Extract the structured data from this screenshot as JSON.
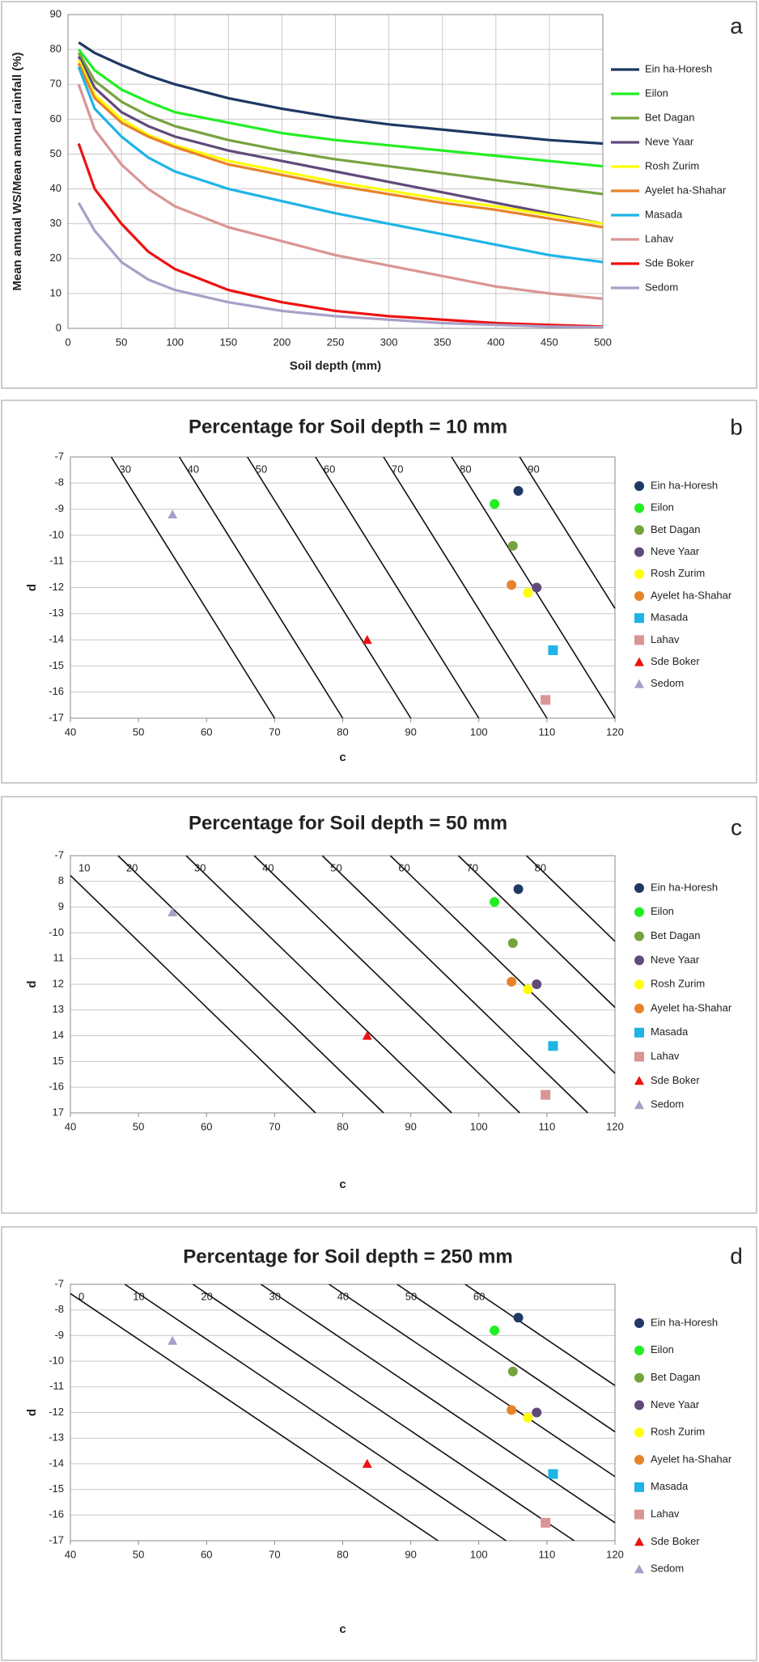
{
  "chart_data": [
    {
      "type": "line",
      "panel": "a",
      "xlabel": "Soil depth (mm)",
      "ylabel": "Mean annual WS/Mean annual rainfall (%)",
      "x": [
        10,
        25,
        50,
        75,
        100,
        150,
        200,
        250,
        300,
        350,
        400,
        450,
        500
      ],
      "xlim": [
        0,
        500
      ],
      "xticks": [
        0,
        50,
        100,
        150,
        200,
        250,
        300,
        350,
        400,
        450,
        500
      ],
      "ylim": [
        0,
        90
      ],
      "yticks": [
        0,
        10,
        20,
        30,
        40,
        50,
        60,
        70,
        80,
        90
      ],
      "grid": "both",
      "legend": "right",
      "series": [
        {
          "name": "Ein ha-Horesh",
          "color": "#1f3864",
          "values": [
            82,
            79,
            75.5,
            72.5,
            70,
            66,
            63,
            60.5,
            58.5,
            57,
            55.5,
            54,
            53
          ]
        },
        {
          "name": "Eilon",
          "color": "#22ee22",
          "values": [
            80,
            74,
            68.5,
            65,
            62,
            59,
            56,
            54,
            52.5,
            51,
            49.5,
            48,
            46.5
          ]
        },
        {
          "name": "Bet Dagan",
          "color": "#77a33f",
          "values": [
            79,
            71,
            65,
            61,
            58,
            54,
            51,
            48.5,
            46.5,
            44.5,
            42.5,
            40.5,
            38.5
          ]
        },
        {
          "name": "Neve Yaar",
          "color": "#604a7b",
          "values": [
            78,
            69,
            62,
            58,
            55,
            51,
            48,
            45,
            42,
            39,
            36,
            33,
            30
          ]
        },
        {
          "name": "Rosh Zurim",
          "color": "#ffff00",
          "values": [
            77,
            67,
            60,
            55.5,
            52.5,
            48,
            45,
            42,
            39.5,
            37,
            35,
            32.5,
            30
          ]
        },
        {
          "name": "Ayelet ha-Shahar",
          "color": "#e8822a",
          "values": [
            76,
            66,
            59,
            55,
            52,
            47,
            44,
            41,
            38.5,
            36,
            34,
            31.5,
            29
          ]
        },
        {
          "name": "Masada",
          "color": "#1fb4e6",
          "values": [
            75,
            63,
            55,
            49,
            45,
            40,
            36.5,
            33,
            30,
            27,
            24,
            21,
            19
          ]
        },
        {
          "name": "Lahav",
          "color": "#d99594",
          "values": [
            70,
            57,
            47,
            40,
            35,
            29,
            25,
            21,
            18,
            15,
            12,
            10,
            8.5
          ]
        },
        {
          "name": "Sde Boker",
          "color": "#ee1111",
          "values": [
            53,
            40,
            30,
            22,
            17,
            11,
            7.5,
            5,
            3.5,
            2.5,
            1.5,
            1,
            0.5
          ]
        },
        {
          "name": "Sedom",
          "color": "#a8a0c8",
          "values": [
            36,
            28,
            19,
            14,
            11,
            7.5,
            5,
            3.5,
            2.5,
            1.5,
            1,
            0.5,
            0.3
          ]
        }
      ]
    },
    {
      "type": "scatter",
      "panel": "b",
      "title": "Percentage  for Soil depth = 10 mm",
      "xlabel": "c",
      "ylabel": "d",
      "xlim": [
        40,
        120
      ],
      "xticks": [
        40,
        50,
        60,
        70,
        80,
        90,
        100,
        110,
        120
      ],
      "ylim": [
        -17,
        -7
      ],
      "yticks": [
        -7,
        -8,
        -9,
        -10,
        -11,
        -12,
        -13,
        -14,
        -15,
        -16,
        -17
      ],
      "grid": "y",
      "legend": "right",
      "contours": [
        {
          "level": 30,
          "x": [
            46,
            70
          ],
          "y": [
            -7,
            -17
          ]
        },
        {
          "level": 40,
          "x": [
            56,
            80
          ],
          "y": [
            -7,
            -17
          ]
        },
        {
          "level": 50,
          "x": [
            66,
            90
          ],
          "y": [
            -7,
            -17
          ]
        },
        {
          "level": 60,
          "x": [
            76,
            100
          ],
          "y": [
            -7,
            -17
          ]
        },
        {
          "level": 70,
          "x": [
            86,
            110
          ],
          "y": [
            -7,
            -17
          ]
        },
        {
          "level": 80,
          "x": [
            96,
            120
          ],
          "y": [
            -7,
            -17
          ]
        },
        {
          "level": 90,
          "x": [
            106,
            120
          ],
          "y": [
            -7,
            -12.8
          ]
        }
      ],
      "series": [
        {
          "name": "Ein ha-Horesh",
          "color": "#1f3864",
          "marker": "circle",
          "x": [
            105.8
          ],
          "y": [
            -8.3
          ]
        },
        {
          "name": "Eilon",
          "color": "#22ee22",
          "marker": "circle",
          "x": [
            102.3
          ],
          "y": [
            -8.8
          ]
        },
        {
          "name": "Bet Dagan",
          "color": "#77a33f",
          "marker": "circle",
          "x": [
            105
          ],
          "y": [
            -10.4
          ]
        },
        {
          "name": "Neve Yaar",
          "color": "#604a7b",
          "marker": "circle",
          "x": [
            108.5
          ],
          "y": [
            -12
          ]
        },
        {
          "name": "Rosh Zurim",
          "color": "#ffff00",
          "marker": "circle",
          "x": [
            107.2
          ],
          "y": [
            -12.2
          ]
        },
        {
          "name": "Ayelet ha-Shahar",
          "color": "#e8822a",
          "marker": "circle",
          "x": [
            104.8
          ],
          "y": [
            -11.9
          ]
        },
        {
          "name": "Masada",
          "color": "#1fb4e6",
          "marker": "square",
          "x": [
            110.9
          ],
          "y": [
            -14.4
          ]
        },
        {
          "name": "Lahav",
          "color": "#d99594",
          "marker": "square",
          "x": [
            109.8
          ],
          "y": [
            -16.3
          ]
        },
        {
          "name": "Sde Boker",
          "color": "#ee1111",
          "marker": "triangle",
          "x": [
            83.6
          ],
          "y": [
            -14
          ]
        },
        {
          "name": "Sedom",
          "color": "#a8a0c8",
          "marker": "triangle",
          "x": [
            55
          ],
          "y": [
            -9.2
          ]
        }
      ]
    },
    {
      "type": "scatter",
      "panel": "c",
      "title": "Percentage  for Soil depth = 50 mm",
      "xlabel": "c",
      "ylabel": "d",
      "xlim": [
        40,
        120
      ],
      "xticks": [
        40,
        50,
        60,
        70,
        80,
        90,
        100,
        110,
        120
      ],
      "ylim": [
        -17,
        -7
      ],
      "yticks": [
        -7,
        {
          "value": -8,
          "label": "8"
        },
        {
          "value": -9,
          "label": "9"
        },
        -10,
        {
          "value": -11,
          "label": "11"
        },
        {
          "value": -12,
          "label": "12"
        },
        {
          "value": -13,
          "label": "13"
        },
        {
          "value": -14,
          "label": "14"
        },
        {
          "value": -15,
          "label": "15"
        },
        -16,
        {
          "value": -17,
          "label": "17"
        }
      ],
      "grid": "y",
      "legend": "right",
      "contours": [
        {
          "level": 10,
          "x": [
            40,
            76
          ],
          "y": [
            -7.77,
            -17
          ]
        },
        {
          "level": 20,
          "x": [
            47,
            86
          ],
          "y": [
            -7,
            -17
          ]
        },
        {
          "level": 30,
          "x": [
            57,
            96
          ],
          "y": [
            -7,
            -17
          ]
        },
        {
          "level": 40,
          "x": [
            67,
            106
          ],
          "y": [
            -7,
            -17
          ]
        },
        {
          "level": 50,
          "x": [
            77,
            116
          ],
          "y": [
            -7,
            -17
          ]
        },
        {
          "level": 60,
          "x": [
            87,
            120
          ],
          "y": [
            -7,
            -15.46
          ]
        },
        {
          "level": 70,
          "x": [
            97,
            120
          ],
          "y": [
            -7,
            -12.9
          ]
        },
        {
          "level": 80,
          "x": [
            107,
            120
          ],
          "y": [
            -7,
            -10.33
          ]
        }
      ],
      "series": [
        {
          "name": "Ein ha-Horesh",
          "color": "#1f3864",
          "marker": "circle",
          "x": [
            105.8
          ],
          "y": [
            -8.3
          ]
        },
        {
          "name": "Eilon",
          "color": "#22ee22",
          "marker": "circle",
          "x": [
            102.3
          ],
          "y": [
            -8.8
          ]
        },
        {
          "name": "Bet Dagan",
          "color": "#77a33f",
          "marker": "circle",
          "x": [
            105
          ],
          "y": [
            -10.4
          ]
        },
        {
          "name": "Neve Yaar",
          "color": "#604a7b",
          "marker": "circle",
          "x": [
            108.5
          ],
          "y": [
            -12
          ]
        },
        {
          "name": "Rosh Zurim",
          "color": "#ffff00",
          "marker": "circle",
          "x": [
            107.2
          ],
          "y": [
            -12.2
          ]
        },
        {
          "name": "Ayelet ha-Shahar",
          "color": "#e8822a",
          "marker": "circle",
          "x": [
            104.8
          ],
          "y": [
            -11.9
          ]
        },
        {
          "name": "Masada",
          "color": "#1fb4e6",
          "marker": "square",
          "x": [
            110.9
          ],
          "y": [
            -14.4
          ]
        },
        {
          "name": "Lahav",
          "color": "#d99594",
          "marker": "square",
          "x": [
            109.8
          ],
          "y": [
            -16.3
          ]
        },
        {
          "name": "Sde Boker",
          "color": "#ee1111",
          "marker": "triangle",
          "x": [
            83.6
          ],
          "y": [
            -14
          ]
        },
        {
          "name": "Sedom",
          "color": "#a8a0c8",
          "marker": "triangle",
          "x": [
            55
          ],
          "y": [
            -9.2
          ]
        }
      ]
    },
    {
      "type": "scatter",
      "panel": "d",
      "title": "Percentage  for Soil depth = 250 mm",
      "xlabel": "c",
      "ylabel": "d",
      "xlim": [
        40,
        120
      ],
      "xticks": [
        40,
        50,
        60,
        70,
        80,
        90,
        100,
        110,
        120
      ],
      "ylim": [
        -17,
        -7
      ],
      "yticks": [
        -7,
        -8,
        -9,
        -10,
        -11,
        -12,
        -13,
        -14,
        -15,
        -16,
        -17
      ],
      "grid": "y",
      "legend": "right",
      "contours": [
        {
          "level": 0,
          "x": [
            40,
            94
          ],
          "y": [
            -7.36,
            -17
          ]
        },
        {
          "level": 10,
          "x": [
            48,
            104
          ],
          "y": [
            -7,
            -17
          ]
        },
        {
          "level": 20,
          "x": [
            58,
            114
          ],
          "y": [
            -7,
            -17
          ]
        },
        {
          "level": 30,
          "x": [
            68,
            120
          ],
          "y": [
            -7,
            -16.3
          ]
        },
        {
          "level": 40,
          "x": [
            78,
            120
          ],
          "y": [
            -7,
            -14.5
          ]
        },
        {
          "level": 50,
          "x": [
            88,
            120
          ],
          "y": [
            -7,
            -12.75
          ]
        },
        {
          "level": 60,
          "x": [
            98,
            120
          ],
          "y": [
            -7,
            -10.95
          ]
        }
      ],
      "series": [
        {
          "name": "Ein ha-Horesh",
          "color": "#1f3864",
          "marker": "circle",
          "x": [
            105.8
          ],
          "y": [
            -8.3
          ]
        },
        {
          "name": "Eilon",
          "color": "#22ee22",
          "marker": "circle",
          "x": [
            102.3
          ],
          "y": [
            -8.8
          ]
        },
        {
          "name": "Bet Dagan",
          "color": "#77a33f",
          "marker": "circle",
          "x": [
            105
          ],
          "y": [
            -10.4
          ]
        },
        {
          "name": "Neve Yaar",
          "color": "#604a7b",
          "marker": "circle",
          "x": [
            108.5
          ],
          "y": [
            -12
          ]
        },
        {
          "name": "Rosh Zurim",
          "color": "#ffff00",
          "marker": "circle",
          "x": [
            107.2
          ],
          "y": [
            -12.2
          ]
        },
        {
          "name": "Ayelet ha-Shahar",
          "color": "#e8822a",
          "marker": "circle",
          "x": [
            104.8
          ],
          "y": [
            -11.9
          ]
        },
        {
          "name": "Masada",
          "color": "#1fb4e6",
          "marker": "square",
          "x": [
            110.9
          ],
          "y": [
            -14.4
          ]
        },
        {
          "name": "Lahav",
          "color": "#d99594",
          "marker": "square",
          "x": [
            109.8
          ],
          "y": [
            -16.3
          ]
        },
        {
          "name": "Sde Boker",
          "color": "#ee1111",
          "marker": "triangle",
          "x": [
            83.6
          ],
          "y": [
            -14
          ]
        },
        {
          "name": "Sedom",
          "color": "#a8a0c8",
          "marker": "triangle",
          "x": [
            55
          ],
          "y": [
            -9.2
          ]
        }
      ]
    }
  ]
}
